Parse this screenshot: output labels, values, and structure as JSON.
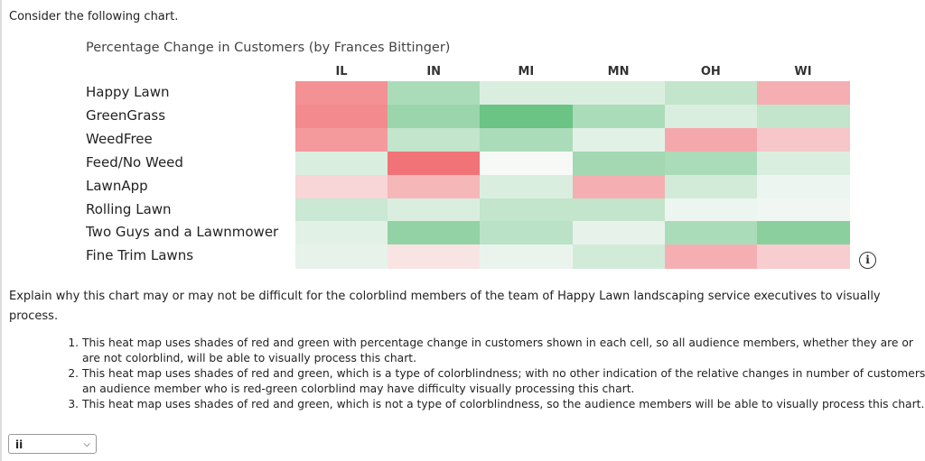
{
  "question_intro": "Consider the following chart.",
  "chart_data": {
    "type": "heatmap",
    "title": "Percentage Change in Customers (by Frances Bittinger)",
    "columns": [
      "IL",
      "IN",
      "MI",
      "MN",
      "OH",
      "WI"
    ],
    "rows": [
      "Happy Lawn",
      "GreenGrass",
      "WeedFree",
      "Feed/No Weed",
      "LawnApp",
      "Rolling Lawn",
      "Two Guys and a Lawnmower",
      "Fine Trim Lawns"
    ],
    "values_note": "relative intensity, red negative, green positive (estimated)",
    "values": [
      [
        -0.7,
        0.5,
        0.2,
        0.2,
        0.35,
        -0.5
      ],
      [
        -0.75,
        0.6,
        0.9,
        0.5,
        0.2,
        0.35
      ],
      [
        -0.65,
        0.35,
        0.5,
        0.15,
        -0.55,
        -0.35
      ],
      [
        0.2,
        -0.9,
        0.02,
        0.55,
        0.5,
        0.2
      ],
      [
        -0.25,
        -0.45,
        0.2,
        -0.5,
        0.25,
        0.08
      ],
      [
        0.3,
        0.2,
        0.35,
        0.35,
        0.08,
        0.06
      ],
      [
        0.15,
        0.65,
        0.4,
        0.12,
        0.5,
        0.7
      ],
      [
        0.12,
        -0.15,
        0.1,
        0.25,
        -0.5,
        -0.3
      ]
    ],
    "colors": {
      "negative": "#f0646a",
      "positive": "#5bbd77",
      "neutral": "#fafafa"
    }
  },
  "info_icon": "i",
  "prompt": "Explain why this chart may or may not be difficult for the colorblind members of the team of Happy Lawn landscaping service executives to visually process.",
  "options": [
    "This heat map uses shades of red and green with percentage change in customers shown in each cell, so all audience members, whether they are or are not colorblind, will be able to visually process this chart.",
    "This heat map uses shades of red and green, which is a type of colorblindness; with no other indication of the relative changes in number of customers, an audience member who is red-green colorblind may have difficulty visually processing this chart.",
    "This heat map uses shades of red and green, which is not a type of colorblindness, so the audience members will be able to visually process this chart."
  ],
  "answer_select": {
    "value": "ii"
  }
}
